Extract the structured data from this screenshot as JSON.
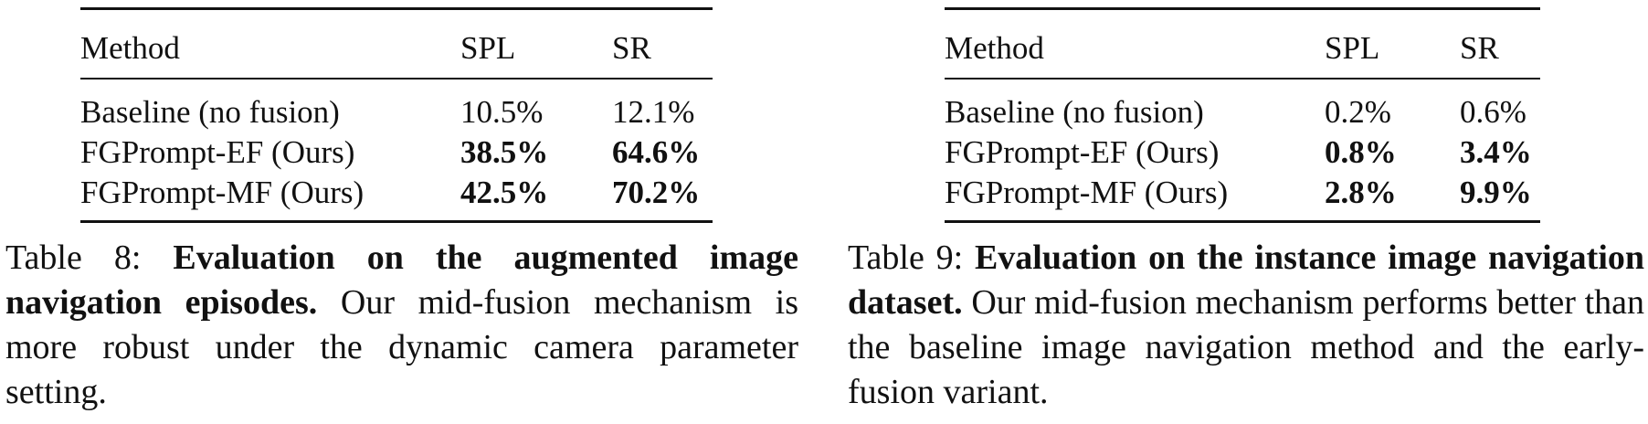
{
  "tables": [
    {
      "headers": [
        "Method",
        "SPL",
        "SR"
      ],
      "rows": [
        {
          "method": "Baseline (no fusion)",
          "spl": "10.5%",
          "sr": "12.1%",
          "bold": false
        },
        {
          "method": "FGPrompt-EF (Ours)",
          "spl": "38.5%",
          "sr": "64.6%",
          "bold": true
        },
        {
          "method": "FGPrompt-MF (Ours)",
          "spl": "42.5%",
          "sr": "70.2%",
          "bold": true
        }
      ],
      "caption": {
        "label": "Table 8:",
        "title": "Evaluation on the augmented image navigation episodes.",
        "text": "Our mid-fusion mechanism is more robust under the dynamic camera parameter setting."
      }
    },
    {
      "headers": [
        "Method",
        "SPL",
        "SR"
      ],
      "rows": [
        {
          "method": "Baseline (no fusion)",
          "spl": "0.2%",
          "sr": "0.6%",
          "bold": false
        },
        {
          "method": "FGPrompt-EF (Ours)",
          "spl": "0.8%",
          "sr": "3.4%",
          "bold": true
        },
        {
          "method": "FGPrompt-MF (Ours)",
          "spl": "2.8%",
          "sr": "9.9%",
          "bold": true
        }
      ],
      "caption": {
        "label": "Table 9:",
        "title": "Evaluation on the instance image navigation dataset.",
        "text": "Our mid-fusion mechanism performs better than the baseline image navigation method and the early-fusion variant."
      }
    }
  ]
}
